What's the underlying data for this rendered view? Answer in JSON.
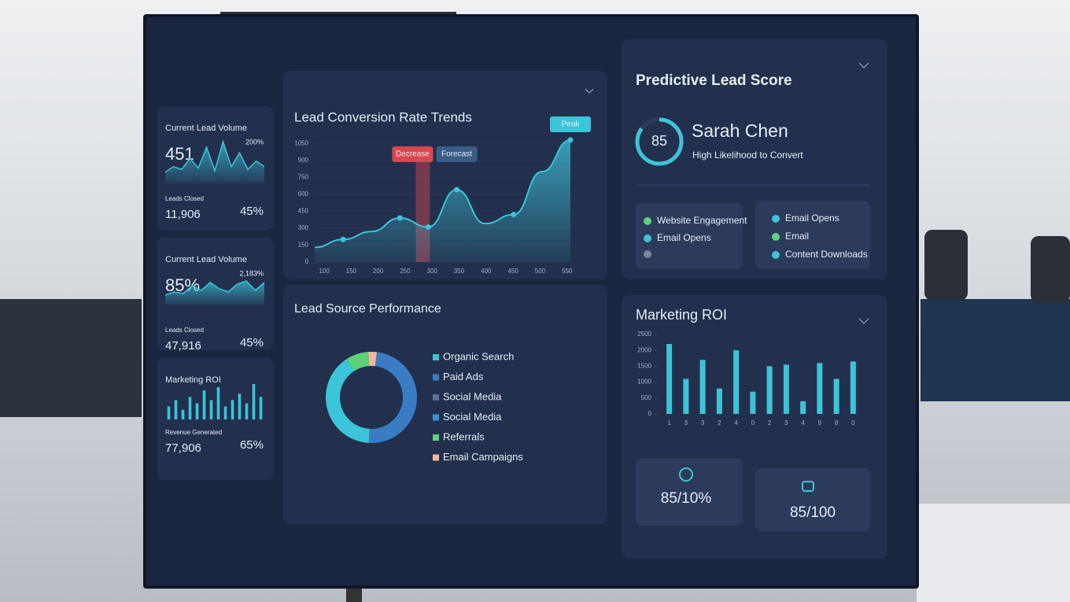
{
  "cards": [
    {
      "title": "Current Lead Volume",
      "value": "451",
      "change": "200%",
      "sub_label": "Leads Closed",
      "sub_value": "11,906",
      "percent": "45%",
      "chart_type": "area",
      "values": [
        8,
        12,
        10,
        18,
        11,
        26,
        9,
        30,
        12,
        22,
        10,
        16,
        12
      ]
    },
    {
      "title": "Current Lead Volume",
      "value": "85%",
      "change": "2,183%",
      "sub_label": "Leads Closed",
      "sub_value": "47,916",
      "percent": "45%",
      "chart_type": "area",
      "values": [
        6,
        8,
        7,
        12,
        9,
        14,
        10,
        8,
        13,
        15,
        9,
        14
      ]
    },
    {
      "title": "Marketing ROI",
      "value": null,
      "change": null,
      "sub_label": "Revenue Generated",
      "sub_value": "77,906",
      "percent": "65%",
      "chart_type": "bar",
      "values": [
        8,
        12,
        6,
        14,
        10,
        18,
        12,
        20,
        8,
        12,
        16,
        10,
        22,
        14
      ]
    }
  ],
  "trend": {
    "title": "Lead Conversion Rate Trends",
    "categories": [
      "100",
      "150",
      "200",
      "250",
      "300",
      "350",
      "400",
      "450",
      "500",
      "550"
    ],
    "values": [
      130,
      200,
      270,
      390,
      310,
      640,
      340,
      420,
      800,
      1080
    ],
    "ylim": [
      0,
      1100
    ],
    "yticks": [
      0,
      150,
      300,
      450,
      600,
      750,
      900,
      1050
    ],
    "color": "#3cc4d8",
    "annotations": [
      "Decrease",
      "Forecast",
      "Peak"
    ]
  },
  "sources": {
    "title": "Lead Source Performance",
    "type": "donut",
    "categories": [
      "Organic Search",
      "Paid Ads",
      "Social Media",
      "Social Media",
      "Referrals",
      "Email Campaigns"
    ],
    "values": [
      40,
      49,
      0,
      0,
      8,
      3
    ],
    "colors": [
      "#3cc4d8",
      "#3a7cc4",
      "#5a6f96",
      "#3a8fd0",
      "#5cd27a",
      "#f0b89a"
    ]
  },
  "score": {
    "title": "Predictive Lead Score",
    "name": "Sarah Chen",
    "subtitle": "High Likelihood to Convert",
    "value": 85,
    "range": [
      0,
      100
    ],
    "left_list": [
      "Website Engagement",
      "Email Opens"
    ],
    "right_list": [
      "Email Opens",
      "Email",
      "Content Downloads"
    ]
  },
  "roi": {
    "title": "Marketing ROI",
    "categories": [
      "1",
      "3",
      "3",
      "2",
      "4",
      "0",
      "2",
      "3",
      "4",
      "9",
      "8",
      "0"
    ],
    "values": [
      2200,
      1100,
      1700,
      800,
      2000,
      700,
      1500,
      1550,
      400,
      1600,
      1100,
      1650
    ],
    "ylim": [
      0,
      2500
    ],
    "yticks": [
      0,
      500,
      1000,
      1500,
      2000,
      2500
    ],
    "color": "#3cc4d8",
    "stat_left": "85/10%",
    "stat_right": "85/100"
  }
}
